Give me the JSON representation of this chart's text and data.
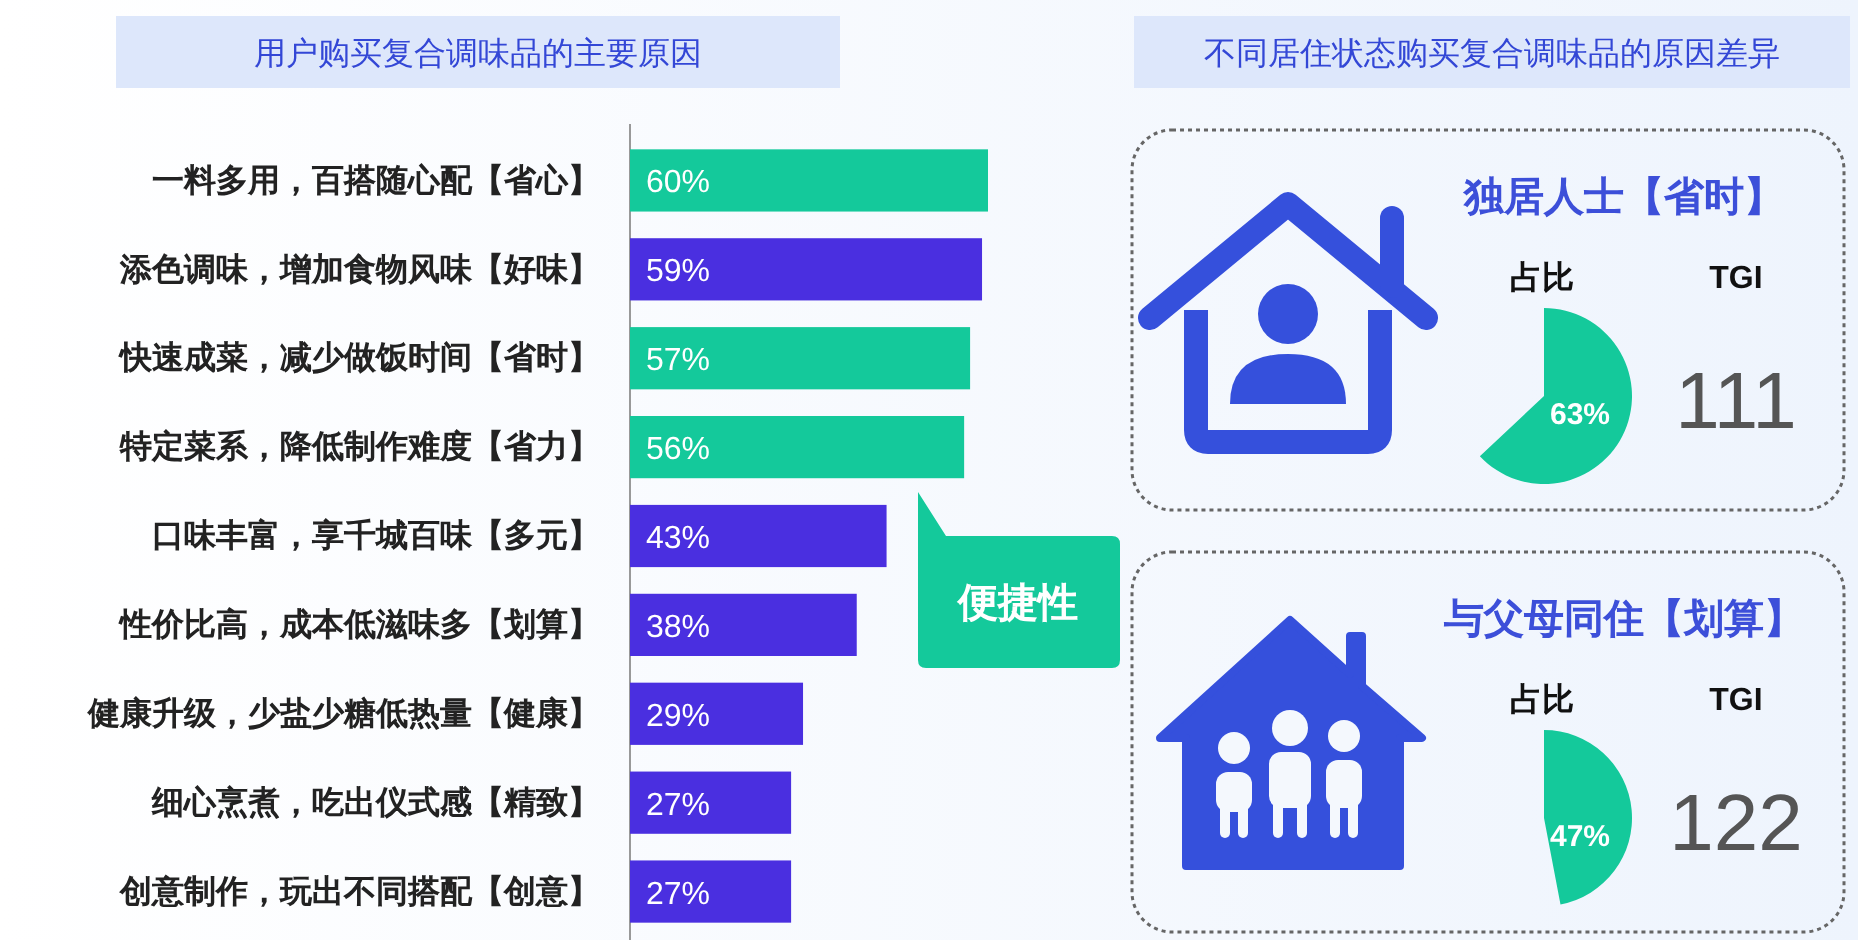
{
  "chart_data": [
    {
      "type": "bar",
      "orientation": "horizontal",
      "title": "用户购买复合调味品的主要原因",
      "categories": [
        "一料多用，百搭随心配【省心】",
        "添色调味，增加食物风味【好味】",
        "快速成菜，减少做饭时间【省时】",
        "特定菜系，降低制作难度【省力】",
        "口味丰富，享千城百味【多元】",
        "性价比高，成本低滋味多【划算】",
        "健康升级，少盐少糖低热量【健康】",
        "细心烹煮，吃出仪式感【精致】",
        "创意制作，玩出不同搭配【创意】"
      ],
      "values": [
        60,
        59,
        57,
        56,
        43,
        38,
        29,
        27,
        27
      ],
      "value_labels": [
        "60%",
        "59%",
        "57%",
        "56%",
        "43%",
        "38%",
        "29%",
        "27%",
        "27%"
      ],
      "colors": [
        "#14c99b",
        "#4a2fe0",
        "#14c99b",
        "#14c99b",
        "#4a2fe0",
        "#4a2fe0",
        "#4a2fe0",
        "#4a2fe0",
        "#4a2fe0"
      ],
      "annotations": [
        "便捷性"
      ]
    },
    {
      "type": "other",
      "title": "不同居住状态购买复合调味品的原因差异",
      "subtitle": "独居人士【省时】",
      "categories": [
        "占比"
      ],
      "values": [
        63
      ],
      "value_labels": [
        "63%"
      ],
      "annotations": [
        "TGI",
        "111"
      ],
      "color": "#14c99b"
    },
    {
      "type": "other",
      "subtitle": "与父母同住【划算】",
      "categories": [
        "占比"
      ],
      "values": [
        47
      ],
      "value_labels": [
        "47%"
      ],
      "annotations": [
        "TGI",
        "122"
      ],
      "color": "#14c99b"
    }
  ]
}
